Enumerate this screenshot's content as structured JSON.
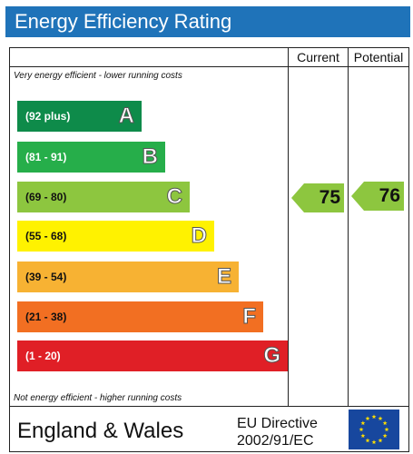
{
  "title": "Energy Efficiency Rating",
  "columns": {
    "current": "Current",
    "potential": "Potential"
  },
  "notes": {
    "top": "Very energy efficient - lower running costs",
    "bottom": "Not energy efficient - higher running costs"
  },
  "bands": [
    {
      "range": "(92 plus)",
      "letter": "A",
      "color": "#0e8b4a",
      "range_color": "#ffffff"
    },
    {
      "range": "(81 - 91)",
      "letter": "B",
      "color": "#26ae4a",
      "range_color": "#ffffff"
    },
    {
      "range": "(69 - 80)",
      "letter": "C",
      "color": "#8dc63f",
      "range_color": "#111111"
    },
    {
      "range": "(55 - 68)",
      "letter": "D",
      "color": "#fff200",
      "range_color": "#111111"
    },
    {
      "range": "(39 - 54)",
      "letter": "E",
      "color": "#f7b233",
      "range_color": "#111111"
    },
    {
      "range": "(21 - 38)",
      "letter": "F",
      "color": "#f26f22",
      "range_color": "#111111"
    },
    {
      "range": "(1 - 20)",
      "letter": "G",
      "color": "#e01f26",
      "range_color": "#ffffff"
    }
  ],
  "ratings": {
    "current": {
      "value": "75",
      "band": "C",
      "color": "#8dc63f"
    },
    "potential": {
      "value": "76",
      "band": "C",
      "color": "#8dc63f"
    }
  },
  "footer": {
    "country": "England & Wales",
    "directive_line1": "EU Directive",
    "directive_line2": "2002/91/EC",
    "flag_icon": "eu-flag-icon",
    "flag_colors": {
      "field": "#17479e",
      "stars": "#ffdd00"
    }
  }
}
